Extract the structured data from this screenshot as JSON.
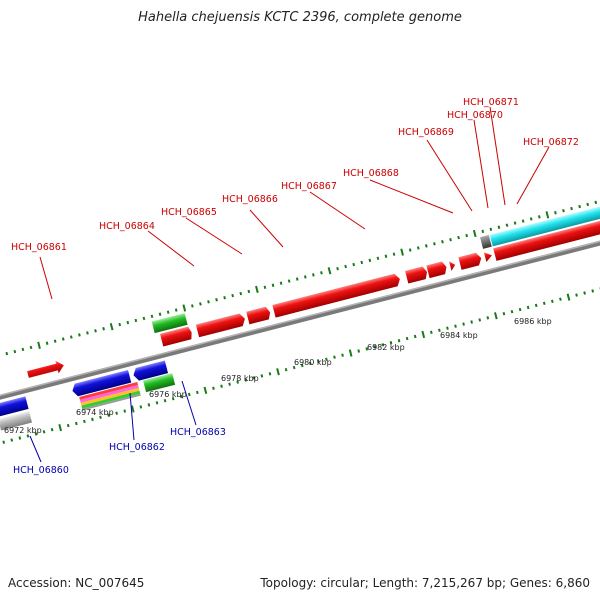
{
  "title": "Hahella chejuensis KCTC 2396, complete genome",
  "footer": {
    "accession": "Accession: NC_007645",
    "topology": "Topology: circular; Length: 7,215,267 bp; Genes: 6,860"
  },
  "colors": {
    "forward_gene": "#ee1111",
    "reverse_gene": "#1111dd",
    "green_feature": "#22bb22",
    "cyan_feature": "#22e5ee",
    "gray_feature": "#bbbbbb",
    "forward_label": "#cc0000",
    "reverse_label": "#0000aa",
    "tick": "#1a7a1a",
    "backbone": "#777777"
  },
  "axis": {
    "unit": "kbp",
    "labels": [
      "6972 kbp",
      "6974 kbp",
      "6976 kbp",
      "6978 kbp",
      "6980 kbp",
      "6982 kbp",
      "6984 kbp",
      "6986 kbp"
    ]
  },
  "forward_labels": [
    "HCH_06861",
    "HCH_06864",
    "HCH_06865",
    "HCH_06866",
    "HCH_06867",
    "HCH_06868",
    "HCH_06869",
    "HCH_06870",
    "HCH_06871",
    "HCH_06872"
  ],
  "reverse_labels": [
    "HCH_06860",
    "HCH_06862",
    "HCH_06863"
  ]
}
